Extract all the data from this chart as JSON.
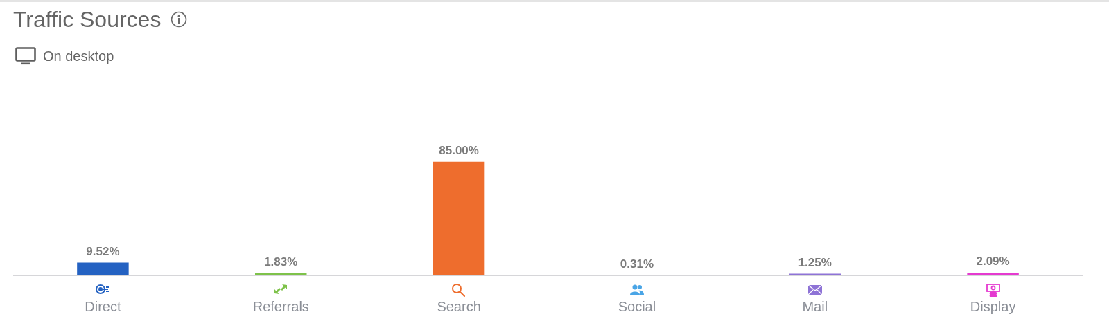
{
  "chart_data": {
    "type": "bar",
    "title": "Traffic Sources",
    "subtitle": "On desktop",
    "categories": [
      "Direct",
      "Referrals",
      "Search",
      "Social",
      "Mail",
      "Display"
    ],
    "values": [
      9.52,
      1.83,
      85.0,
      0.31,
      1.25,
      2.09
    ],
    "colors": [
      "#2462c2",
      "#7ec24a",
      "#ee6d2d",
      "#4aa5e6",
      "#8e73d6",
      "#e53ad0"
    ],
    "value_labels": [
      "9.52%",
      "1.83%",
      "85.00%",
      "0.31%",
      "1.25%",
      "2.09%"
    ],
    "tick_labels": "x",
    "grid": false,
    "legend": false
  }
}
